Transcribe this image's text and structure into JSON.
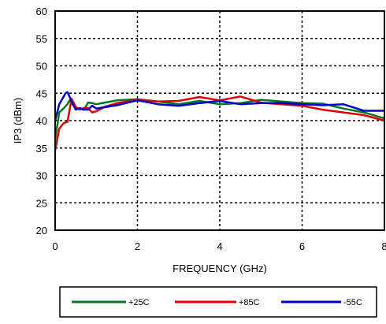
{
  "chart_data": {
    "type": "line",
    "title": "",
    "xlabel": "FREQUENCY (GHz)",
    "ylabel": "IP3 (dBm)",
    "xlim": [
      0,
      8
    ],
    "ylim": [
      20,
      60
    ],
    "xticks": [
      0,
      2,
      4,
      6,
      8
    ],
    "xtick_labels": [
      "0",
      "2",
      "4",
      "6",
      "8"
    ],
    "yticks": [
      20,
      25,
      30,
      35,
      40,
      45,
      50,
      55,
      60
    ],
    "ytick_labels": [
      "20",
      "25",
      "30",
      "35",
      "40",
      "45",
      "50",
      "55",
      "60"
    ],
    "grid": true,
    "legend_position": "bottom",
    "series": [
      {
        "name": "+25C",
        "color": "#007a1f",
        "x": [
          0.0,
          0.1,
          0.2,
          0.3,
          0.35,
          0.5,
          0.7,
          0.8,
          0.9,
          1.0,
          1.5,
          2.0,
          2.5,
          3.0,
          3.5,
          4.0,
          4.5,
          5.0,
          5.5,
          6.0,
          6.5,
          7.0,
          7.5,
          8.0
        ],
        "values": [
          36.5,
          41.5,
          42.2,
          43.0,
          43.7,
          42.2,
          42.0,
          43.3,
          43.2,
          43.0,
          43.7,
          43.9,
          43.5,
          43.0,
          43.6,
          43.0,
          43.2,
          43.8,
          43.5,
          43.2,
          43.1,
          42.2,
          41.5,
          40.4
        ]
      },
      {
        "name": "+85C",
        "color": "#e00000",
        "x": [
          0.0,
          0.1,
          0.2,
          0.3,
          0.4,
          0.5,
          0.6,
          0.7,
          0.8,
          0.9,
          1.0,
          1.2,
          1.5,
          2.0,
          2.5,
          3.0,
          3.5,
          4.0,
          4.5,
          5.0,
          5.5,
          6.0,
          6.5,
          7.0,
          7.5,
          8.0
        ],
        "values": [
          34.5,
          38.5,
          39.5,
          39.8,
          44.0,
          42.5,
          42.0,
          42.3,
          42.3,
          41.5,
          41.7,
          42.5,
          43.2,
          43.8,
          43.5,
          43.6,
          44.3,
          43.7,
          44.4,
          43.3,
          43.0,
          42.7,
          42.0,
          41.5,
          41.0,
          40.0
        ]
      },
      {
        "name": "-55C",
        "color": "#0000cc",
        "x": [
          0.0,
          0.1,
          0.2,
          0.25,
          0.3,
          0.4,
          0.5,
          0.6,
          0.7,
          0.8,
          0.9,
          1.0,
          1.5,
          2.0,
          2.5,
          3.0,
          3.5,
          4.0,
          4.5,
          5.0,
          5.5,
          6.0,
          6.5,
          7.0,
          7.5,
          8.0
        ],
        "values": [
          40.0,
          43.0,
          44.3,
          45.0,
          45.2,
          43.5,
          42.0,
          42.3,
          42.0,
          42.0,
          42.7,
          42.2,
          42.8,
          43.7,
          43.0,
          42.7,
          43.2,
          43.6,
          43.0,
          43.2,
          43.2,
          43.0,
          42.8,
          43.0,
          41.8,
          41.8
        ]
      }
    ]
  }
}
